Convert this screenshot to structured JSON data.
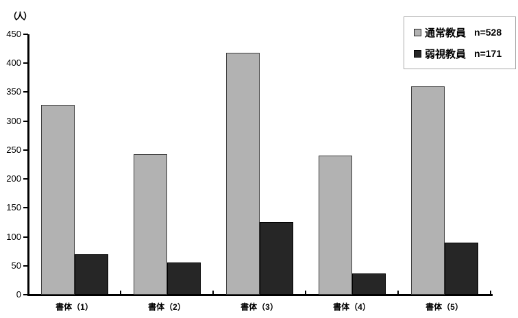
{
  "chart_data": {
    "type": "bar",
    "title": "",
    "unit_label": "（人）",
    "categories": [
      "書体（1）",
      "書体（2）",
      "書体（3）",
      "書体（4）",
      "書体（5）"
    ],
    "series": [
      {
        "name": "通常教員",
        "n_label": "n=528",
        "color": "#b2b2b2",
        "border_color": "#3a3a3a",
        "values": [
          328,
          243,
          418,
          240,
          360
        ]
      },
      {
        "name": "弱視教員",
        "n_label": "n=171",
        "color": "#262626",
        "border_color": "#000000",
        "values": [
          70,
          56,
          125,
          37,
          90
        ]
      }
    ],
    "xlabel": "",
    "ylabel": "（人）",
    "ylim": [
      0,
      450
    ],
    "ytick_interval": 50,
    "yticks": [
      0,
      50,
      100,
      150,
      200,
      250,
      300,
      350,
      400,
      450
    ],
    "grid": false,
    "legend_position": "top-right",
    "background_color": "#ffffff",
    "axis_color": "#000000"
  }
}
